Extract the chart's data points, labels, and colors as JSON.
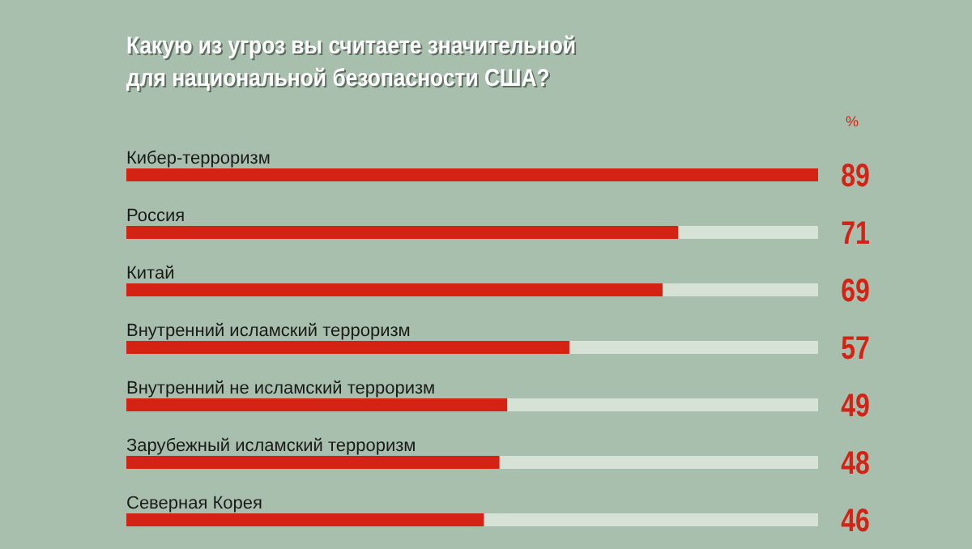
{
  "chart_data": {
    "type": "bar",
    "orientation": "horizontal",
    "title": "Какую из угроз вы считаете значительной\nдля национальной безопасности США?",
    "categories": [
      "Кибер-терроризм",
      "Россия",
      "Китай",
      "Внутренний исламский терроризм",
      "Внутренний не исламский терроризм",
      "Зарубежный исламский терроризм",
      "Северная Корея"
    ],
    "values": [
      89,
      71,
      69,
      57,
      49,
      48,
      46
    ],
    "color": "#d42314",
    "xlim": [
      0,
      89
    ],
    "data_labels": true,
    "annotations": [
      "%"
    ]
  }
}
